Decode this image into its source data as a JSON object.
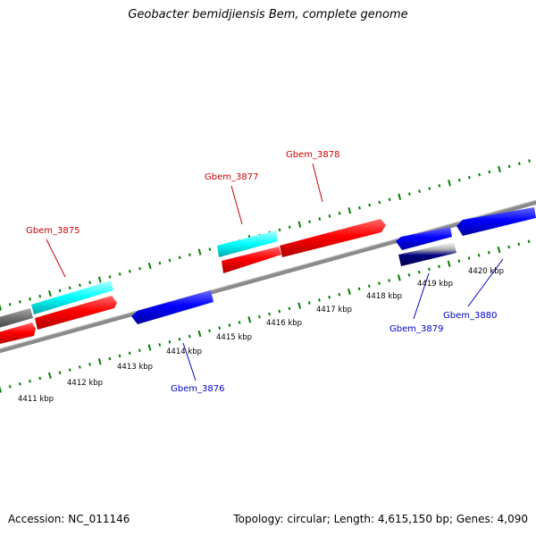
{
  "title": "Geobacter bemidjiensis Bem, complete genome",
  "footer": {
    "accession": "Accession: NC_011146",
    "summary": "Topology: circular; Length: 4,615,150 bp; Genes: 4,090"
  },
  "colors": {
    "forward_gene": "#ff0000",
    "reverse_gene": "#0000ff",
    "rna": "#00ffff",
    "backbone": "#808080",
    "ticks": "#008000",
    "forward_label": "#cc0000",
    "reverse_label": "#0000cc"
  },
  "axis_labels": [
    "4411 kbp",
    "4412 kbp",
    "4413 kbp",
    "4414 kbp",
    "4415 kbp",
    "4416 kbp",
    "4417 kbp",
    "4418 kbp",
    "4419 kbp",
    "4420 kbp"
  ],
  "gene_labels": [
    {
      "name": "Gbem_3875",
      "strand": "forward"
    },
    {
      "name": "Gbem_3877",
      "strand": "forward"
    },
    {
      "name": "Gbem_3878",
      "strand": "forward"
    },
    {
      "name": "Gbem_3876",
      "strand": "reverse"
    },
    {
      "name": "Gbem_3879",
      "strand": "reverse"
    },
    {
      "name": "Gbem_3880",
      "strand": "reverse"
    }
  ]
}
